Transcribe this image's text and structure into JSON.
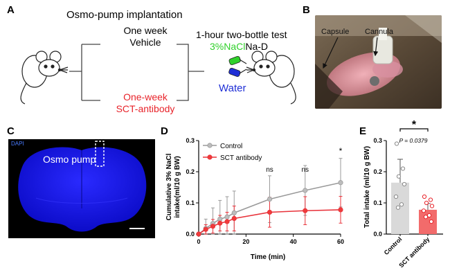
{
  "panels": {
    "a": {
      "letter": "A",
      "title": "Osmo-pump implantation",
      "vehicle_line1": "One week",
      "vehicle_line2": "Vehicle",
      "antibody_line1": "One-week",
      "antibody_line2": "SCT-antibody",
      "test_title": "1-hour two-bottle test",
      "nacl_label": "3%NaCl",
      "nacl_suffix": "Na-D",
      "water_label": "Water"
    },
    "b": {
      "letter": "B",
      "capsule_label": "Capsule",
      "cannula_label": "Cannula"
    },
    "c": {
      "letter": "C",
      "dapi_label": "DAPI",
      "pump_label": "Osmo pump"
    },
    "d": {
      "letter": "D"
    },
    "e": {
      "letter": "E",
      "p_value": "P = 0.0379",
      "sig_mark": "*"
    }
  },
  "colors": {
    "control": "#9a9a9a",
    "sct": "#e8323a",
    "sct_bar": "#f26b6b",
    "control_bar": "#d9d9d9",
    "dapi_blue": "#1a1aff",
    "nacl_green": "#2fd12a",
    "water_blue": "#1f2fd6",
    "antibody_red": "#e8232a"
  },
  "chart_data": [
    {
      "type": "line",
      "panel": "D",
      "xlabel": "Time (min)",
      "ylabel_line1": "Cumulative 3% NaCl",
      "ylabel_line2": "intake(ml/10 g BW)",
      "xlim": [
        0,
        60
      ],
      "ylim": [
        0,
        0.3
      ],
      "xticks": [
        0,
        20,
        40,
        60
      ],
      "yticks": [
        0.0,
        0.1,
        0.2,
        0.3
      ],
      "ytick_labels": [
        "0.0",
        "0.1",
        "0.2",
        "0.3"
      ],
      "x": [
        0,
        3,
        6,
        9,
        12,
        15,
        30,
        45,
        60
      ],
      "series": [
        {
          "name": "Control",
          "values": [
            0,
            0.018,
            0.034,
            0.048,
            0.055,
            0.068,
            0.112,
            0.14,
            0.165
          ],
          "errors": [
            0,
            0.03,
            0.05,
            0.06,
            0.065,
            0.07,
            0.075,
            0.08,
            0.078
          ]
        },
        {
          "name": "SCT antibody",
          "values": [
            0,
            0.015,
            0.025,
            0.035,
            0.04,
            0.05,
            0.07,
            0.075,
            0.078
          ],
          "errors": [
            0,
            0.015,
            0.022,
            0.025,
            0.03,
            0.04,
            0.048,
            0.045,
            0.043
          ]
        }
      ],
      "annotations": [
        {
          "x": 30,
          "text": "ns"
        },
        {
          "x": 45,
          "text": "ns"
        },
        {
          "x": 60,
          "text": "*"
        }
      ],
      "legend": "top-left"
    },
    {
      "type": "bar",
      "panel": "E",
      "ylabel": "Total intake (ml/10 g BW)",
      "categories": [
        "Control",
        "SCT antibody"
      ],
      "values": [
        0.165,
        0.078
      ],
      "errors": [
        0.075,
        0.02
      ],
      "ylim": [
        0,
        0.3
      ],
      "yticks": [
        0.0,
        0.1,
        0.2,
        0.3
      ],
      "ytick_labels": [
        "0.0",
        "0.1",
        "0.2",
        "0.3"
      ],
      "points": [
        [
          0.29,
          0.21,
          0.185,
          0.16,
          0.12,
          0.095,
          0.085
        ],
        [
          0.12,
          0.11,
          0.1,
          0.09,
          0.075,
          0.06,
          0.055,
          0.04
        ]
      ]
    }
  ]
}
